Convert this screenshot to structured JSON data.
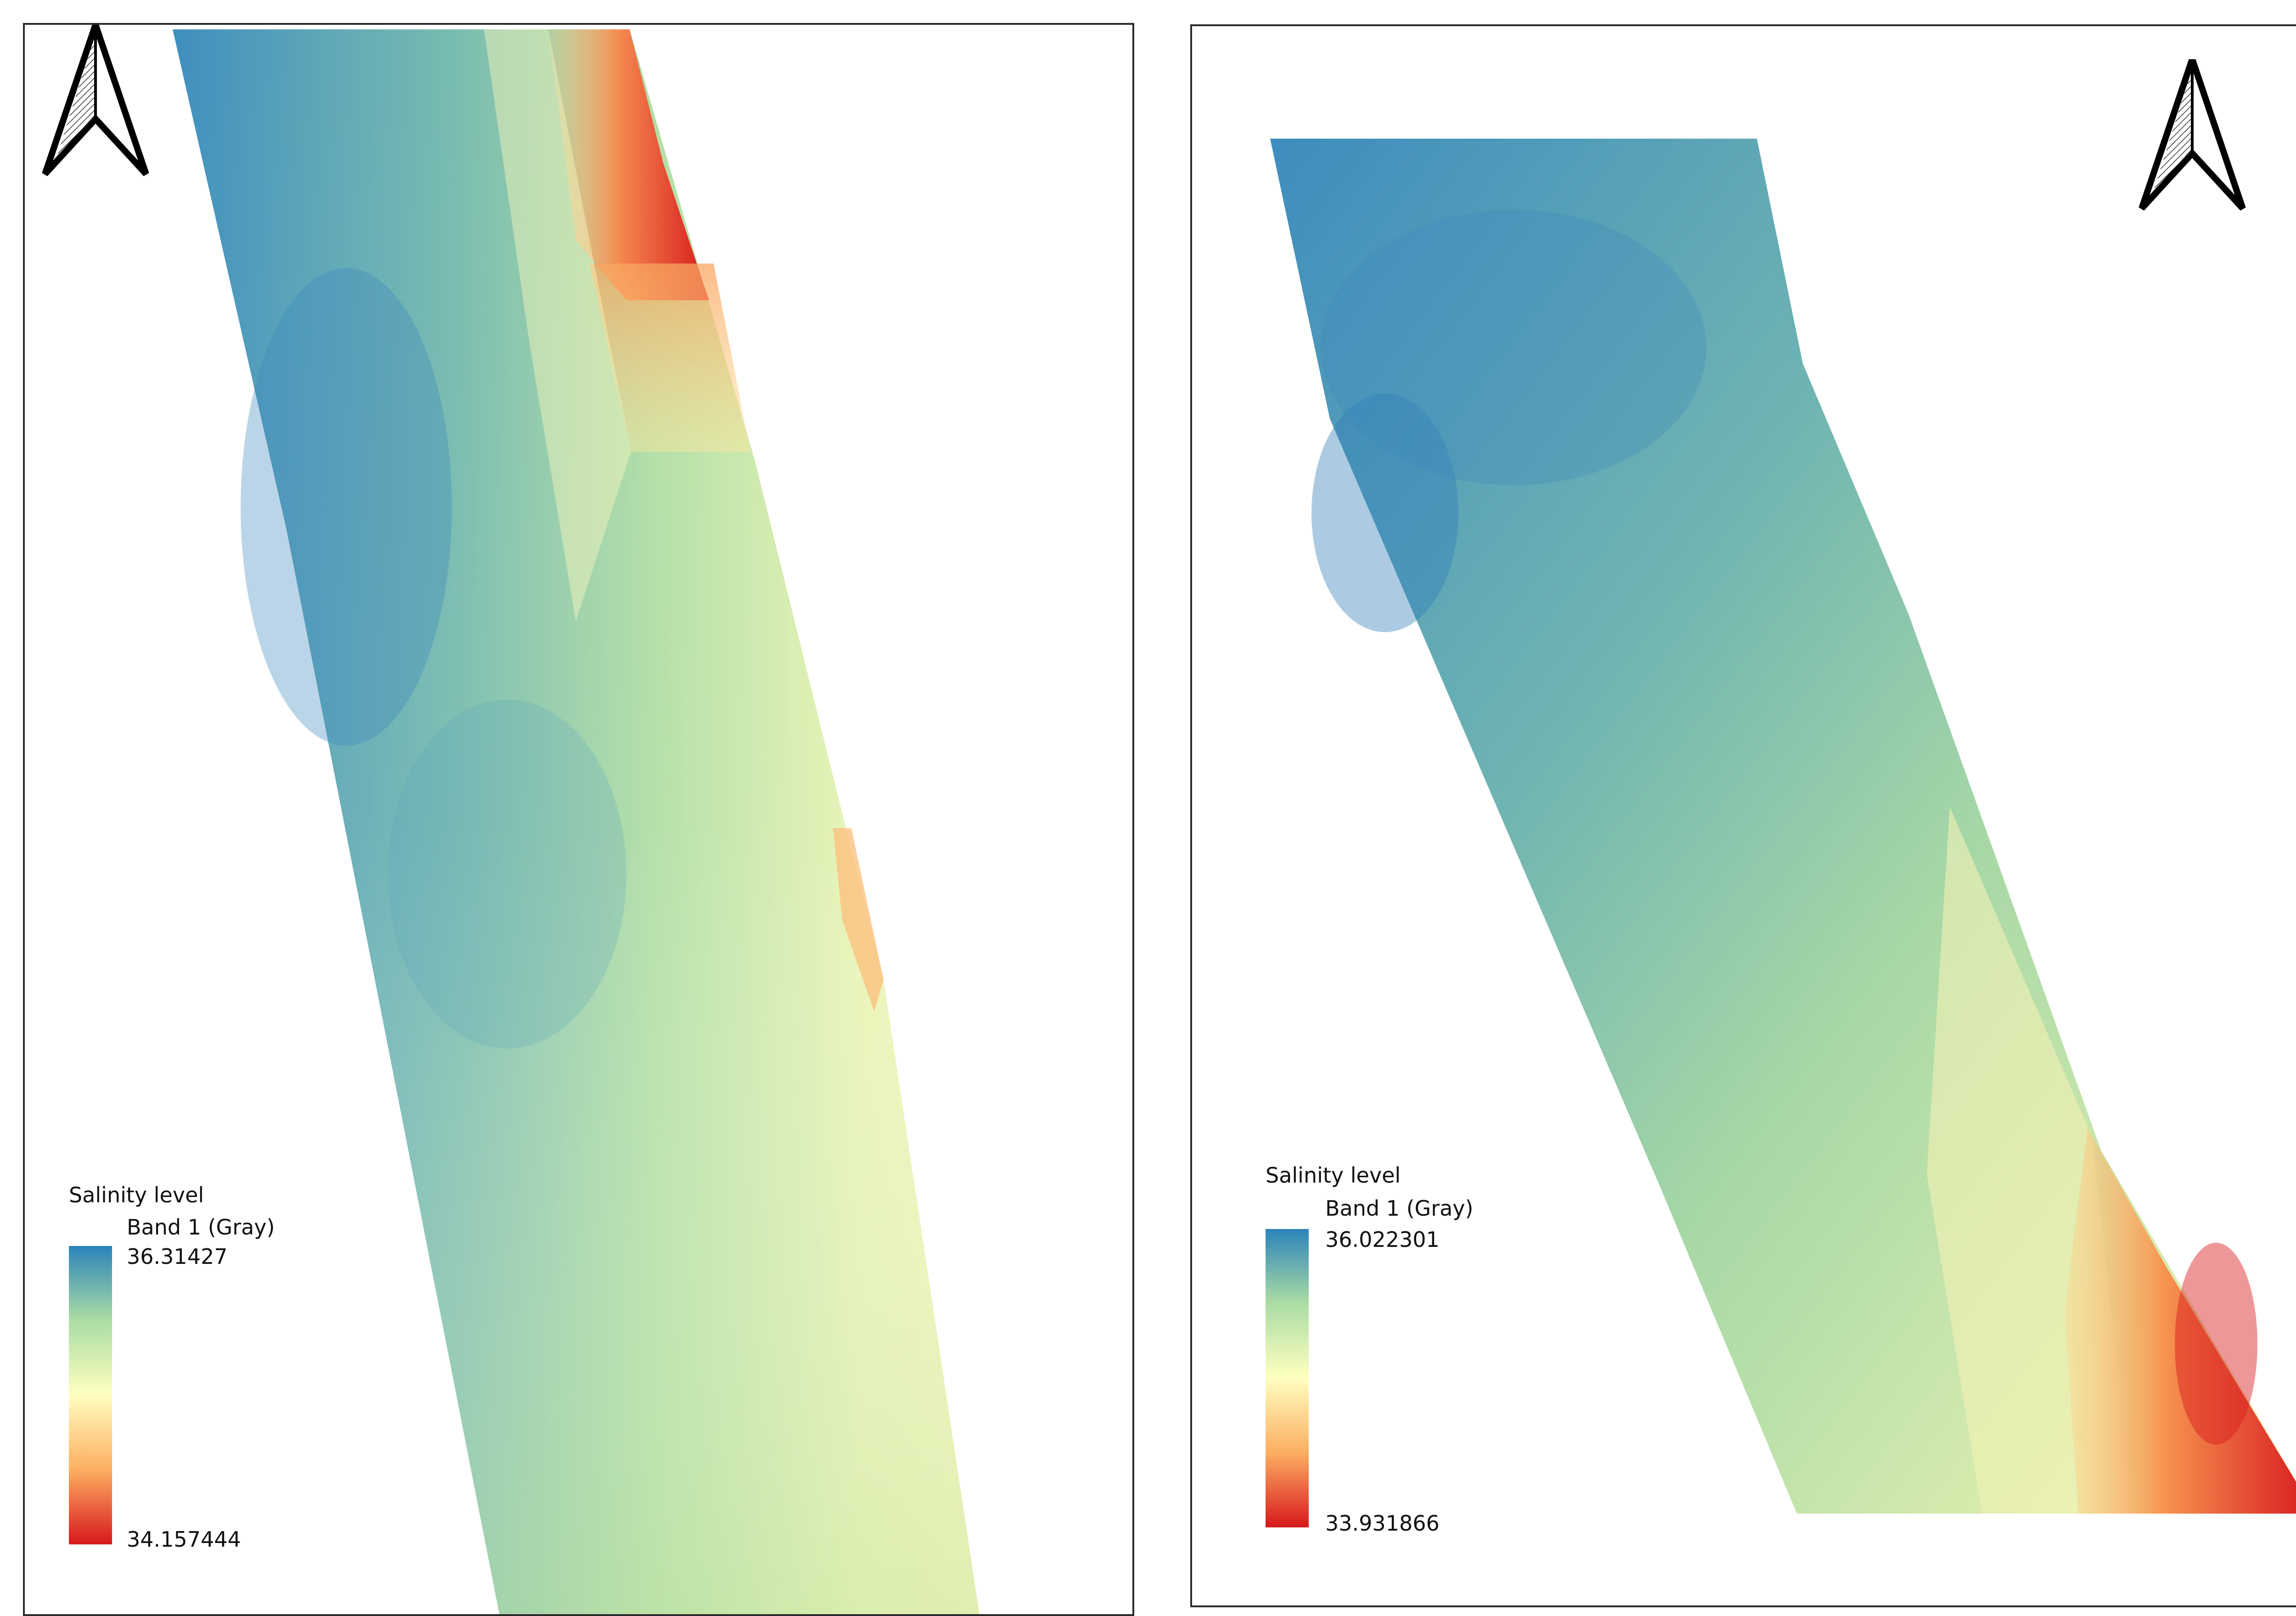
{
  "maps": [
    {
      "id": "left",
      "north_arrow_icon": "north-arrow-icon",
      "legend": {
        "title": "Salinity level",
        "band": "Band 1 (Gray)",
        "max": "36.31427",
        "min": "34.157444"
      }
    },
    {
      "id": "right",
      "north_arrow_icon": "north-arrow-icon",
      "legend": {
        "title": "Salinity level",
        "band": "Band 1 (Gray)",
        "max": "36.022301",
        "min": "33.931866"
      }
    }
  ],
  "color_ramp": [
    "#2b83ba",
    "#abdda4",
    "#ffffbf",
    "#fdae61",
    "#d7191c"
  ]
}
